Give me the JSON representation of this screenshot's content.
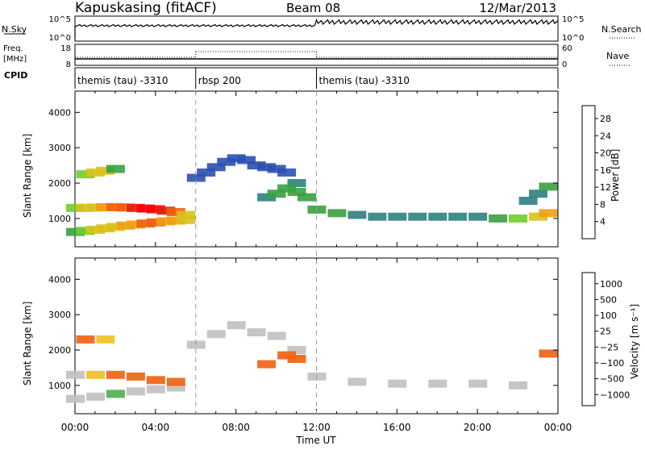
{
  "header": {
    "station": "Kapuskasing (fitACF)",
    "beam": "Beam 08",
    "date": "12/Mar/2013"
  },
  "sky_panel": {
    "label": "N.Sky",
    "right_label": "N.Search",
    "left_ticks": [
      "10^5",
      "10^0"
    ],
    "right_ticks": [
      "10^5",
      "10^0"
    ]
  },
  "freq_panel": {
    "label_line1": "Freq.",
    "label_line2": "[MHz]",
    "right_label": "Nave",
    "left_ticks": [
      "18",
      "8"
    ],
    "right_ticks": [
      "60",
      "0"
    ]
  },
  "cpid": {
    "label": "CPID",
    "segments": [
      {
        "label": "themis (tau) -3310",
        "start_hour": 0,
        "end_hour": 6
      },
      {
        "label": "rbsp 200",
        "start_hour": 6,
        "end_hour": 12
      },
      {
        "label": "themis (tau) -3310",
        "start_hour": 12,
        "end_hour": 24
      }
    ]
  },
  "chart_data": [
    {
      "type": "heatmap",
      "title": "",
      "xlabel": "Time UT",
      "ylabel": "Slant Range [km]",
      "xlim": [
        0,
        24
      ],
      "ylim": [
        200,
        4600
      ],
      "x_ticks": [
        "00:00",
        "04:00",
        "08:00",
        "12:00",
        "16:00",
        "20:00",
        "00:00"
      ],
      "y_ticks": [
        1000,
        2000,
        3000,
        4000
      ],
      "colorbar": {
        "label": "Power [dB]",
        "ticks": [
          4,
          8,
          12,
          16,
          20,
          24,
          28
        ],
        "range": [
          0,
          31
        ],
        "colors": [
          "#1020d0",
          "#2a50b0",
          "#2e7f7f",
          "#3aa040",
          "#6fcd2a",
          "#d8c21a",
          "#f0a010",
          "#f06010",
          "#e02010",
          "#ff0000"
        ]
      },
      "series": [
        {
          "name": "",
          "points": [
            {
              "x": 0.0,
              "y": 620,
              "v": 12
            },
            {
              "x": 0.5,
              "y": 650,
              "v": 14
            },
            {
              "x": 1.0,
              "y": 680,
              "v": 16
            },
            {
              "x": 1.5,
              "y": 720,
              "v": 18
            },
            {
              "x": 2.0,
              "y": 760,
              "v": 18
            },
            {
              "x": 2.5,
              "y": 800,
              "v": 20
            },
            {
              "x": 3.0,
              "y": 830,
              "v": 20
            },
            {
              "x": 3.5,
              "y": 860,
              "v": 22
            },
            {
              "x": 4.0,
              "y": 890,
              "v": 22
            },
            {
              "x": 4.5,
              "y": 920,
              "v": 20
            },
            {
              "x": 5.0,
              "y": 940,
              "v": 20
            },
            {
              "x": 5.5,
              "y": 960,
              "v": 18
            },
            {
              "x": 0.0,
              "y": 1300,
              "v": 14
            },
            {
              "x": 0.5,
              "y": 1300,
              "v": 16
            },
            {
              "x": 1.0,
              "y": 1310,
              "v": 18
            },
            {
              "x": 1.5,
              "y": 1320,
              "v": 20
            },
            {
              "x": 2.0,
              "y": 1320,
              "v": 22
            },
            {
              "x": 2.5,
              "y": 1310,
              "v": 24
            },
            {
              "x": 3.0,
              "y": 1300,
              "v": 26
            },
            {
              "x": 3.5,
              "y": 1280,
              "v": 28
            },
            {
              "x": 4.0,
              "y": 1260,
              "v": 28
            },
            {
              "x": 4.5,
              "y": 1220,
              "v": 26
            },
            {
              "x": 5.0,
              "y": 1180,
              "v": 22
            },
            {
              "x": 5.5,
              "y": 1100,
              "v": 18
            },
            {
              "x": 0.5,
              "y": 2250,
              "v": 14
            },
            {
              "x": 1.0,
              "y": 2300,
              "v": 16
            },
            {
              "x": 1.5,
              "y": 2350,
              "v": 18
            },
            {
              "x": 2.0,
              "y": 2400,
              "v": 12
            },
            {
              "x": 6.0,
              "y": 2150,
              "v": 6
            },
            {
              "x": 6.5,
              "y": 2300,
              "v": 6
            },
            {
              "x": 7.0,
              "y": 2450,
              "v": 5
            },
            {
              "x": 7.5,
              "y": 2600,
              "v": 6
            },
            {
              "x": 8.0,
              "y": 2700,
              "v": 6
            },
            {
              "x": 8.5,
              "y": 2650,
              "v": 5
            },
            {
              "x": 9.0,
              "y": 2500,
              "v": 6
            },
            {
              "x": 9.5,
              "y": 2450,
              "v": 5
            },
            {
              "x": 10.0,
              "y": 2400,
              "v": 6
            },
            {
              "x": 10.5,
              "y": 2300,
              "v": 6
            },
            {
              "x": 11.0,
              "y": 2000,
              "v": 8
            },
            {
              "x": 11.5,
              "y": 1600,
              "v": 10
            },
            {
              "x": 9.5,
              "y": 1600,
              "v": 8
            },
            {
              "x": 10.0,
              "y": 1700,
              "v": 10
            },
            {
              "x": 10.5,
              "y": 1850,
              "v": 12
            },
            {
              "x": 11.0,
              "y": 1750,
              "v": 10
            },
            {
              "x": 12.0,
              "y": 1250,
              "v": 10
            },
            {
              "x": 13.0,
              "y": 1150,
              "v": 10
            },
            {
              "x": 14.0,
              "y": 1100,
              "v": 8
            },
            {
              "x": 15.0,
              "y": 1050,
              "v": 8
            },
            {
              "x": 16.0,
              "y": 1050,
              "v": 8
            },
            {
              "x": 17.0,
              "y": 1050,
              "v": 8
            },
            {
              "x": 18.0,
              "y": 1050,
              "v": 8
            },
            {
              "x": 19.0,
              "y": 1050,
              "v": 8
            },
            {
              "x": 20.0,
              "y": 1050,
              "v": 8
            },
            {
              "x": 21.0,
              "y": 1000,
              "v": 10
            },
            {
              "x": 22.0,
              "y": 1000,
              "v": 14
            },
            {
              "x": 23.0,
              "y": 1050,
              "v": 18
            },
            {
              "x": 22.5,
              "y": 1500,
              "v": 8
            },
            {
              "x": 23.0,
              "y": 1700,
              "v": 8
            },
            {
              "x": 23.5,
              "y": 1900,
              "v": 10
            },
            {
              "x": 23.5,
              "y": 1150,
              "v": 20
            }
          ]
        }
      ]
    },
    {
      "type": "heatmap",
      "title": "",
      "xlabel": "Time UT",
      "ylabel": "Slant Range [km]",
      "xlim": [
        0,
        24
      ],
      "ylim": [
        200,
        4600
      ],
      "x_ticks": [
        "00:00",
        "04:00",
        "08:00",
        "12:00",
        "16:00",
        "20:00",
        "00:00"
      ],
      "y_ticks": [
        1000,
        2000,
        3000,
        4000
      ],
      "colorbar": {
        "label": "Velocity [m s^-1]",
        "ticks": [
          "1000",
          "500",
          "100",
          "25",
          "−25",
          "−100",
          "−500",
          "−1000"
        ],
        "colors": [
          "#1f3fb0",
          "#2a62a8",
          "#2e8a70",
          "#4caf50",
          "#7fd040",
          "#c0c0c0",
          "#c0c0c0",
          "#f0c020",
          "#f09010",
          "#f06010",
          "#e82010",
          "#ff0000"
        ]
      },
      "series": [
        {
          "name": "",
          "points": [
            {
              "x": 0.0,
              "y": 620,
              "v": 0
            },
            {
              "x": 1.0,
              "y": 680,
              "v": 0
            },
            {
              "x": 2.0,
              "y": 760,
              "v": 50
            },
            {
              "x": 3.0,
              "y": 830,
              "v": 20
            },
            {
              "x": 4.0,
              "y": 890,
              "v": 0
            },
            {
              "x": 5.0,
              "y": 940,
              "v": 0
            },
            {
              "x": 0.0,
              "y": 1300,
              "v": 0
            },
            {
              "x": 1.0,
              "y": 1300,
              "v": -50
            },
            {
              "x": 2.0,
              "y": 1300,
              "v": -150
            },
            {
              "x": 3.0,
              "y": 1250,
              "v": -300
            },
            {
              "x": 4.0,
              "y": 1150,
              "v": -300
            },
            {
              "x": 5.0,
              "y": 1100,
              "v": -150
            },
            {
              "x": 0.5,
              "y": 2300,
              "v": -200
            },
            {
              "x": 1.5,
              "y": 2300,
              "v": -100
            },
            {
              "x": 6.0,
              "y": 2150,
              "v": 0
            },
            {
              "x": 7.0,
              "y": 2450,
              "v": 0
            },
            {
              "x": 8.0,
              "y": 2700,
              "v": 0
            },
            {
              "x": 9.0,
              "y": 2500,
              "v": 0
            },
            {
              "x": 10.0,
              "y": 2400,
              "v": 0
            },
            {
              "x": 11.0,
              "y": 2000,
              "v": 0
            },
            {
              "x": 9.5,
              "y": 1600,
              "v": -150
            },
            {
              "x": 10.5,
              "y": 1850,
              "v": -250
            },
            {
              "x": 11.0,
              "y": 1750,
              "v": -200
            },
            {
              "x": 12.0,
              "y": 1250,
              "v": 0
            },
            {
              "x": 14.0,
              "y": 1100,
              "v": 0
            },
            {
              "x": 16.0,
              "y": 1050,
              "v": 0
            },
            {
              "x": 18.0,
              "y": 1050,
              "v": 0
            },
            {
              "x": 20.0,
              "y": 1050,
              "v": 0
            },
            {
              "x": 22.0,
              "y": 1000,
              "v": 0
            },
            {
              "x": 23.5,
              "y": 1900,
              "v": -200
            }
          ]
        }
      ]
    }
  ]
}
